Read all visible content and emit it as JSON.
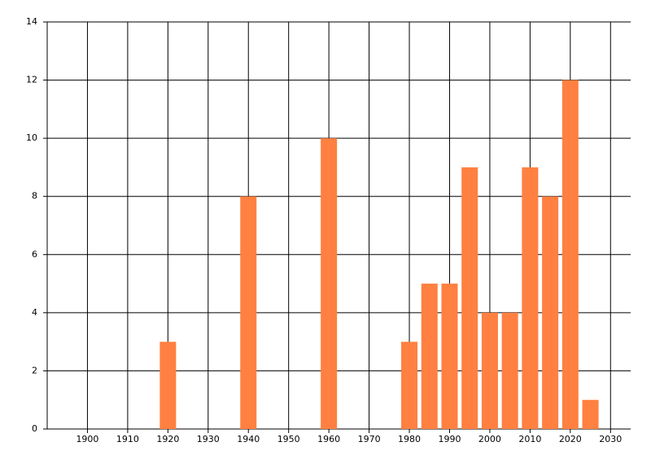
{
  "chart_data": {
    "type": "bar",
    "x": [
      1920,
      1940,
      1960,
      1980,
      1985,
      1990,
      1995,
      2000,
      2005,
      2010,
      2015,
      2020,
      2025
    ],
    "values": [
      3,
      8,
      10,
      3,
      5,
      5,
      9,
      4,
      4,
      9,
      8,
      12,
      1
    ],
    "color": "#ff8040",
    "xlim": [
      1890,
      2035
    ],
    "xticks": [
      1900,
      1910,
      1920,
      1930,
      1940,
      1950,
      1960,
      1970,
      1980,
      1990,
      2000,
      2010,
      2020,
      2030
    ],
    "ylim": [
      0,
      14
    ],
    "yticks": [
      0,
      2,
      4,
      6,
      8,
      10,
      12,
      14
    ],
    "grid": true
  }
}
